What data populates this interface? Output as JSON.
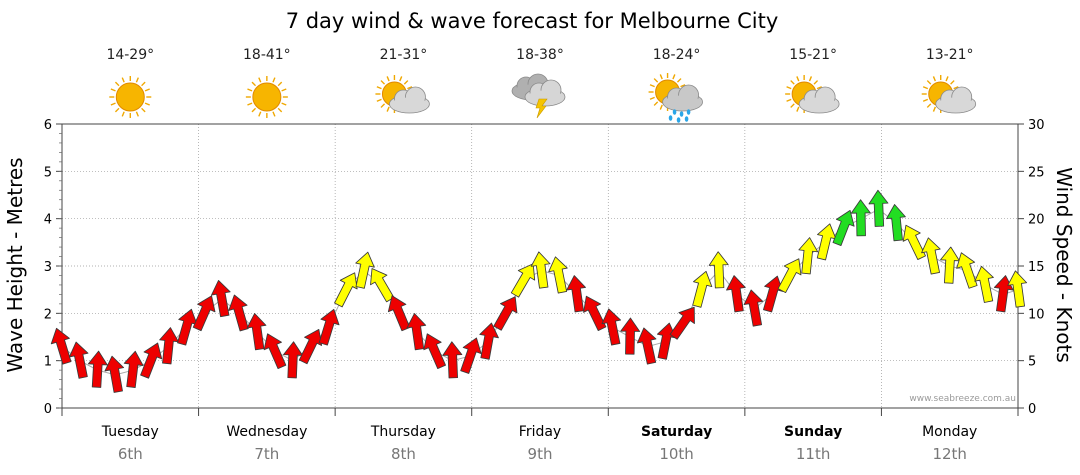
{
  "chart_data": {
    "type": "line",
    "title": "7 day wind & wave forecast for Melbourne City",
    "ylabel_left": "Wave Height - Metres",
    "ylabel_right": "Wind Speed - Knots",
    "ylim_left": [
      0,
      6
    ],
    "ylim_right": [
      0,
      30
    ],
    "yticks_left": [
      "0",
      "1",
      "2",
      "3",
      "4",
      "5",
      "6"
    ],
    "yticks_right": [
      "0",
      "5",
      "10",
      "15",
      "20",
      "25",
      "30"
    ],
    "grid": true,
    "watermark": "www.seabreeze.com.au",
    "days": [
      {
        "name": "Tuesday",
        "date": "6th",
        "temp": "14-29°",
        "icon": "sunny-icon",
        "bold": false
      },
      {
        "name": "Wednesday",
        "date": "7th",
        "temp": "18-41°",
        "icon": "sunny-icon",
        "bold": false
      },
      {
        "name": "Thursday",
        "date": "8th",
        "temp": "21-31°",
        "icon": "partly-cloudy-icon",
        "bold": false
      },
      {
        "name": "Friday",
        "date": "9th",
        "temp": "18-38°",
        "icon": "thunderstorm-icon",
        "bold": false
      },
      {
        "name": "Saturday",
        "date": "10th",
        "temp": "18-24°",
        "icon": "partly-cloudy-rain-icon",
        "bold": true
      },
      {
        "name": "Sunday",
        "date": "11th",
        "temp": "15-21°",
        "icon": "partly-cloudy-icon",
        "bold": true
      },
      {
        "name": "Monday",
        "date": "12th",
        "temp": "13-21°",
        "icon": "partly-cloudy-icon",
        "bold": false
      }
    ],
    "colors": {
      "low": "#ee0000",
      "mid": "#ffff00",
      "high": "#22dd22",
      "line": "#aaaaaa",
      "grid": "#999999"
    },
    "series": [
      {
        "name": "Wind",
        "x": [
          0.0,
          0.13,
          0.26,
          0.39,
          0.52,
          0.65,
          0.78,
          0.91,
          1.04,
          1.17,
          1.3,
          1.43,
          1.56,
          1.69,
          1.82,
          1.95,
          2.08,
          2.21,
          2.34,
          2.47,
          2.6,
          2.73,
          2.86,
          2.99,
          3.12,
          3.25,
          3.38,
          3.51,
          3.64,
          3.77,
          3.9,
          4.03,
          4.16,
          4.29,
          4.42,
          4.55,
          4.68,
          4.81,
          4.94,
          5.07,
          5.2,
          5.33,
          5.46,
          5.59,
          5.72,
          5.85,
          5.98,
          6.11,
          6.24,
          6.37,
          6.5,
          6.63,
          6.76,
          6.89,
          7.0
        ],
        "values": [
          6.5,
          5.0,
          4.0,
          3.5,
          4.0,
          5.0,
          6.5,
          8.5,
          10.0,
          11.5,
          10.0,
          8.0,
          6.0,
          5.0,
          6.5,
          8.5,
          12.5,
          14.5,
          13.0,
          10.0,
          8.0,
          6.0,
          5.0,
          5.5,
          7.0,
          10.0,
          13.5,
          14.5,
          14.0,
          12.0,
          10.0,
          8.5,
          7.5,
          6.5,
          7.0,
          9.0,
          12.5,
          14.5,
          12.0,
          10.5,
          12.0,
          14.0,
          16.0,
          17.5,
          19.0,
          20.0,
          21.0,
          19.5,
          17.5,
          16.0,
          15.0,
          14.5,
          13.0,
          12.0,
          12.5
        ]
      }
    ]
  }
}
